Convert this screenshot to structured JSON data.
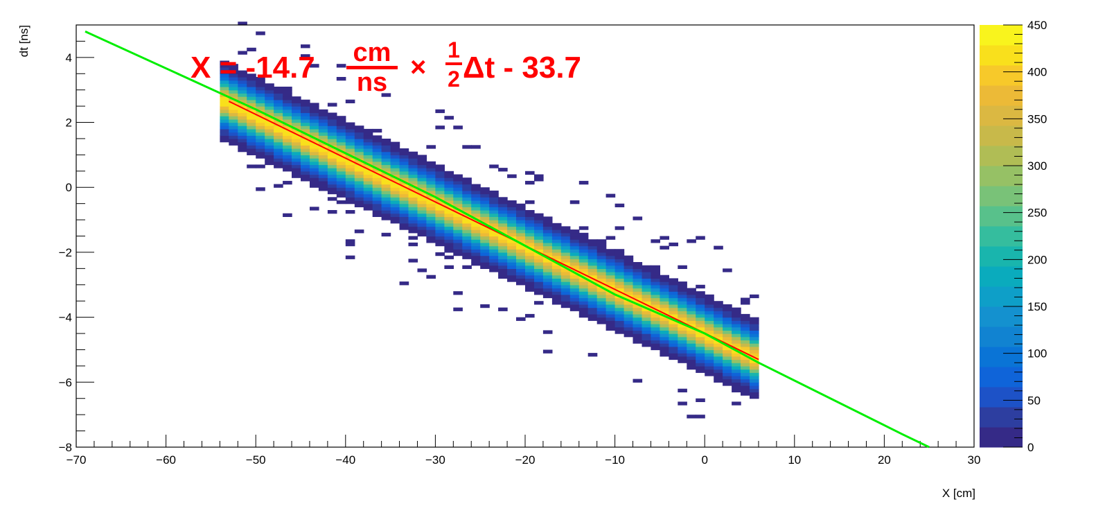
{
  "chart_data": {
    "type": "heatmap",
    "title": "",
    "xlabel": "X [cm]",
    "ylabel": "dt [ns]",
    "xlim": [
      -70,
      30
    ],
    "ylim": [
      -8,
      5
    ],
    "x_ticks": [
      -70,
      -60,
      -50,
      -40,
      -30,
      -20,
      -10,
      0,
      10,
      20,
      30
    ],
    "x_tick_labels": [
      "−70",
      "−60",
      "−50",
      "−40",
      "−30",
      "−20",
      "−10",
      "0",
      "10",
      "20",
      "30"
    ],
    "y_ticks": [
      -8,
      -6,
      -4,
      -2,
      0,
      2,
      4
    ],
    "y_tick_labels": [
      "−8",
      "−6",
      "−4",
      "−2",
      "0",
      "2",
      "4"
    ],
    "grid": false,
    "colorbar": {
      "min": 0,
      "max": 450,
      "ticks": [
        0,
        50,
        100,
        150,
        200,
        250,
        300,
        350,
        400,
        450
      ],
      "tick_labels": [
        "0",
        "50",
        "100",
        "150",
        "200",
        "250",
        "300",
        "350",
        "400",
        "450"
      ],
      "palette": [
        "#352a87",
        "#2d3ea0",
        "#1d52c7",
        "#0f64d9",
        "#0a74d6",
        "#1183d1",
        "#1491cf",
        "#0e9fc8",
        "#0aabbd",
        "#19b5ad",
        "#35bd9e",
        "#58c18b",
        "#79c278",
        "#96c165",
        "#b0bd55",
        "#c8b94a",
        "#dbb842",
        "#ecba37",
        "#f7c92a",
        "#f9e01c",
        "#f9f41d"
      ]
    },
    "histogram": {
      "x_range": [
        -54,
        6
      ],
      "center_line": {
        "slope": -0.134,
        "intercept_ns": -4.52
      },
      "band_sigma_ns": 0.42,
      "peak_count": 420
    },
    "fit_lines": [
      {
        "color": "#ff0000",
        "x": [
          -53,
          6
        ],
        "y": [
          2.65,
          -5.3
        ]
      },
      {
        "color": "#00ee00",
        "x": [
          -69,
          -50,
          -30,
          -10,
          0,
          6,
          22,
          25
        ],
        "y": [
          4.8,
          2.4,
          -0.3,
          -3.3,
          -4.5,
          -5.4,
          -7.6,
          -8.0
        ]
      }
    ],
    "annotation": {
      "lhs": "X = -14.7",
      "frac_num": "cm",
      "frac_den": "ns",
      "times": "×",
      "half_num": "1",
      "half_den": "2",
      "tail": "Δt -  33.7"
    }
  }
}
